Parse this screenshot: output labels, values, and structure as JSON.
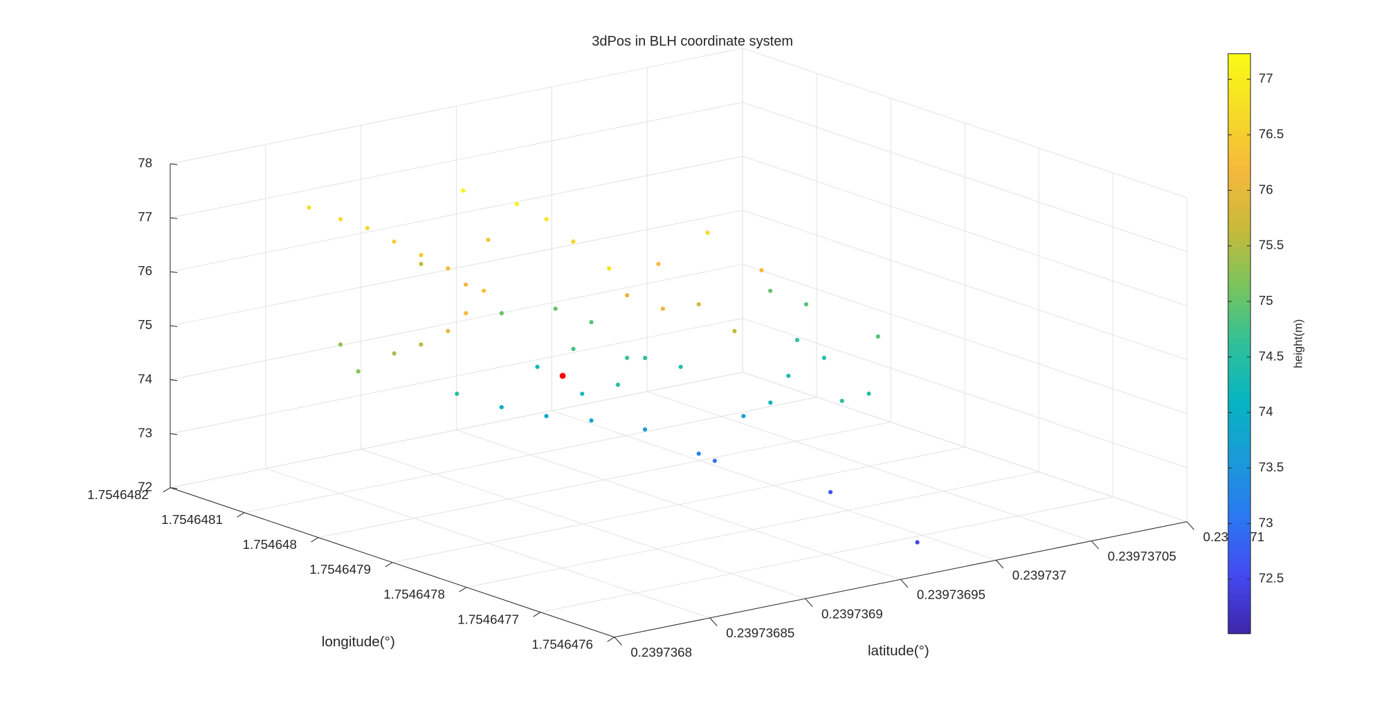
{
  "chart_data": {
    "type": "scatter3d",
    "title": "3dPos in BLH coordinate system",
    "xlabel": "latitude(°)",
    "ylabel": "longitude(°)",
    "colorbar_label": "height(m)",
    "xlim": [
      0.2397368,
      0.2397371
    ],
    "xticks": [
      0.2397368,
      0.23973685,
      0.2397369,
      0.23973695,
      0.239737,
      0.23973705,
      0.2397371
    ],
    "ylim": [
      1.7546476,
      1.7546482
    ],
    "yticks": [
      1.7546476,
      1.7546477,
      1.7546478,
      1.7546479,
      1.754648,
      1.7546481,
      1.7546482
    ],
    "zlim": [
      72,
      78
    ],
    "zticks": [
      72,
      73,
      74,
      75,
      76,
      77,
      78
    ],
    "clim": [
      72.01,
      77.23
    ],
    "cticks": [
      72.5,
      73,
      73.5,
      74,
      74.5,
      75,
      75.5,
      76,
      76.5,
      77
    ],
    "colormap": [
      "#3e26a8",
      "#4349f0",
      "#2b78f2",
      "#1a9ad9",
      "#06b4c2",
      "#30c09a",
      "#7ac45c",
      "#c9ba3a",
      "#f6b83c",
      "#f5dc26",
      "#f9fb15"
    ],
    "grid": true,
    "series": [
      {
        "marker_color": "colormap",
        "x": [
          0.2397368659,
          0.2397368701,
          0.2397368755,
          0.2397368764,
          0.2397368774,
          0.2397368837,
          0.2397368791,
          0.2397369108,
          0.2397368684,
          0.2397369142,
          0.2397369217,
          0.2397369172,
          0.2397369271,
          0.2397369299,
          0.2397369049,
          0.2397369268,
          0.239736957,
          0.2397369773,
          0.239736846,
          0.2397368332,
          0.2397368323,
          0.2397368254,
          0.2397368217,
          0.2397368066,
          0.2397369208,
          0.2397369428,
          0.2397369467,
          0.2397369223,
          0.2397369055,
          0.2397369155,
          0.2397369452,
          0.2397369535,
          0.239736952,
          0.2397369481,
          0.2397370306,
          0.2397370345,
          0.2397370125,
          0.2397369853,
          0.2397370092,
          0.2397369638,
          0.2397369629,
          0.239736989,
          0.2397370267,
          0.2397368818,
          0.2397368931,
          0.2397369087,
          0.2397369281,
          0.2397369432,
          0.239736952,
          0.2397369752,
          0.2397369653,
          0.2397369847,
          0.2397369254,
          0.2397369679,
          0.2397368487,
          0.23973692,
          0.2397369341
        ],
        "y": [
          1.7546481823,
          1.7546481507,
          1.7546481283,
          1.7546480945,
          1.7546480607,
          1.7546480406,
          1.7546480046,
          1.7546481467,
          1.7546479528,
          1.7546480649,
          1.7546480454,
          1.7546481063,
          1.7546480195,
          1.7546479904,
          1.7546478776,
          1.7546479097,
          1.7546479452,
          1.7546479311,
          1.7546479192,
          1.7546479105,
          1.7546479446,
          1.7546479629,
          1.754648026,
          1.7546479631,
          1.7546480637,
          1.7546480477,
          1.7546480093,
          1.7546480193,
          1.7546479155,
          1.7546478929,
          1.7546479329,
          1.7546479061,
          1.7546478779,
          1.7546478195,
          1.7546479838,
          1.7546479454,
          1.7546479008,
          1.7546478426,
          1.754647856,
          1.7546478115,
          1.7546478456,
          1.7546477435,
          1.7546478283,
          1.7546479633,
          1.7546479319,
          1.7546479114,
          1.7546478889,
          1.7546478552,
          1.7546478563,
          1.7546477598,
          1.754647617,
          1.7546478774,
          1.7546478578,
          1.7546477254,
          1.7546479383,
          1.7546479647,
          1.7546479286
        ],
        "z": [
          76.8,
          76.7,
          76.6,
          76.5,
          76.4,
          76.2,
          76.1,
          75.6,
          76.3,
          76.4,
          77.1,
          77.1,
          76.9,
          76.6,
          76.8,
          76.0,
          76.2,
          76.7,
          76.2,
          76.0,
          75.6,
          75.4,
          75.3,
          75.2,
          75.0,
          75.0,
          74.9,
          74.2,
          74.3,
          74.5,
          74.6,
          74.5,
          75.8,
          75.6,
          75.0,
          74.9,
          74.6,
          74.4,
          74.5,
          74.2,
          73.8,
          74.5,
          74.9,
          74.0,
          73.9,
          73.8,
          73.6,
          73.2,
          73.0,
          72.7,
          72.5,
          76.2,
          76.0,
          74.6,
          74.6,
          74.8,
          74.7
        ]
      },
      {
        "marker_color": "#ff0000",
        "x": [
          0.2397369429
        ],
        "y": [
          1.7546480382
        ],
        "z": [
          73.8
        ]
      }
    ]
  }
}
